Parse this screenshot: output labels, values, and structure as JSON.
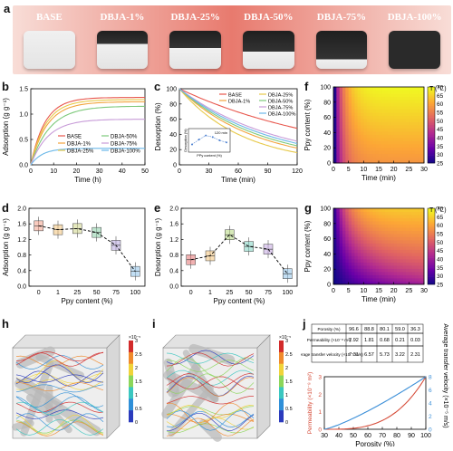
{
  "panel_labels": {
    "a": "a",
    "b": "b",
    "c": "c",
    "d": "d",
    "e": "e",
    "f": "f",
    "g": "g",
    "h": "h",
    "i": "i",
    "j": "j"
  },
  "colors": {
    "banner_start": "#f6d6d0",
    "banner_mid": "#e87a6e",
    "banner_end": "#f6d6d0"
  },
  "samples": [
    "BASE",
    "DBJA-1%",
    "DBJA-25%",
    "DBJA-50%",
    "DBJA-75%",
    "DBJA-100%"
  ],
  "series_colors": [
    "#e8574d",
    "#f2a43c",
    "#e7c94a",
    "#7dc97a",
    "#c79bd8",
    "#6bb8e8"
  ],
  "chart_data": [
    {
      "id": "b",
      "type": "line",
      "xlabel": "Time (h)",
      "ylabel": "Adsorption (g g⁻¹)",
      "xlim": [
        0,
        50
      ],
      "ylim": [
        0,
        1.75
      ],
      "xticks": [
        "0",
        "10",
        "20",
        "30",
        "40",
        "50"
      ],
      "yticks": [
        "0.0",
        "0.5",
        "1.0",
        "1.5"
      ],
      "series": [
        {
          "name": "BASE",
          "plateau": 1.55,
          "rate": 0.16
        },
        {
          "name": "DBJA-1%",
          "plateau": 1.45,
          "rate": 0.14
        },
        {
          "name": "DBJA-25%",
          "plateau": 1.5,
          "rate": 0.15
        },
        {
          "name": "DBJA-50%",
          "plateau": 1.35,
          "rate": 0.12
        },
        {
          "name": "DBJA-75%",
          "plateau": 1.05,
          "rate": 0.13
        },
        {
          "name": "DBJA-100%",
          "plateau": 0.38,
          "rate": 0.2
        }
      ]
    },
    {
      "id": "c",
      "type": "line",
      "xlabel": "Time (min)",
      "ylabel": "Desorption (%)",
      "xlim": [
        0,
        120
      ],
      "ylim": [
        0,
        100
      ],
      "xticks": [
        "0",
        "30",
        "60",
        "90",
        "120"
      ],
      "yticks": [
        "0",
        "20",
        "40",
        "60",
        "80",
        "100"
      ],
      "series": [
        {
          "name": "BASE",
          "end": 48
        },
        {
          "name": "DBJA-1%",
          "end": 22
        },
        {
          "name": "DBJA-25%",
          "end": 16
        },
        {
          "name": "DBJA-50%",
          "end": 25
        },
        {
          "name": "DBJA-75%",
          "end": 31
        },
        {
          "name": "DBJA-100%",
          "end": 28
        }
      ],
      "inset": {
        "annotation": "120 min",
        "xlabel": "PPy content (%)",
        "ylabel": "Desorption (%)",
        "values": [
          50,
          62,
          72,
          68,
          60,
          55
        ]
      }
    },
    {
      "id": "d",
      "type": "box",
      "xlabel": "Ppy content (%)",
      "ylabel": "Adsorption (g g⁻¹)",
      "categories": [
        "0",
        "1",
        "25",
        "50",
        "75",
        "100"
      ],
      "values": [
        1.55,
        1.45,
        1.48,
        1.38,
        1.05,
        0.38
      ],
      "ylim": [
        0,
        2.0
      ],
      "yticks": [
        "0.0",
        "0.4",
        "0.8",
        "1.2",
        "1.6",
        "2.0"
      ]
    },
    {
      "id": "e",
      "type": "box",
      "xlabel": "Ppy content (%)",
      "ylabel": "Desorption (g g⁻¹)",
      "categories": [
        "0",
        "1",
        "25",
        "50",
        "75",
        "100"
      ],
      "values": [
        0.68,
        0.78,
        1.32,
        1.02,
        0.95,
        0.32
      ],
      "ylim": [
        0,
        2.0
      ],
      "yticks": [
        "0.0",
        "0.4",
        "0.8",
        "1.2",
        "1.6",
        "2.0"
      ]
    },
    {
      "id": "f",
      "type": "heatmap",
      "xlabel": "Time (min)",
      "ylabel": "Ppy content (%)",
      "xticks": [
        "0",
        "5",
        "10",
        "15",
        "20",
        "25",
        "30"
      ],
      "yticks": [
        "0",
        "20",
        "40",
        "60",
        "80",
        "100"
      ],
      "colorbar": {
        "title": "T (℃)",
        "ticks": [
          "25",
          "30",
          "35",
          "40",
          "45",
          "50",
          "55",
          "60",
          "65",
          "70"
        ],
        "range": [
          25,
          70
        ]
      }
    },
    {
      "id": "g",
      "type": "heatmap",
      "xlabel": "Time (min)",
      "ylabel": "Ppy content (%)",
      "xticks": [
        "0",
        "5",
        "10",
        "15",
        "20",
        "25",
        "30"
      ],
      "yticks": [
        "0",
        "20",
        "40",
        "60",
        "80",
        "100"
      ],
      "colorbar": {
        "title": "T (℃)",
        "ticks": [
          "25",
          "30",
          "35",
          "40",
          "45",
          "50",
          "55",
          "60",
          "65",
          "70"
        ],
        "range": [
          25,
          70
        ]
      }
    },
    {
      "id": "j",
      "type": "line",
      "xlabel": "Porosity (%)",
      "ylabel_left": "Permeability (×10⁻⁸ m²)",
      "ylabel_right": "Average transfer velocity (×10⁻⁵ m/s)",
      "xticks": [
        "30",
        "40",
        "50",
        "60",
        "70",
        "80",
        "90",
        "100"
      ],
      "yticks_left": [
        "0",
        "1",
        "2",
        "3"
      ],
      "yticks_right": [
        "0",
        "2",
        "4",
        "6",
        "8"
      ],
      "table": {
        "rows": [
          {
            "label": "Porosity (%)",
            "values": [
              "96.6",
              "88.8",
              "80.1",
              "59.0",
              "36.3"
            ]
          },
          {
            "label": "Permeability (×10⁻⁸ m²)",
            "values": [
              "2.92",
              "1.81",
              "0.68",
              "0.21",
              "0.03"
            ]
          },
          {
            "label": "Average transfer velocity (×10⁻⁵ m/s)",
            "values": [
              "7.31",
              "6.57",
              "5.73",
              "3.22",
              "2.31"
            ]
          }
        ]
      }
    }
  ],
  "sim_h": {
    "colorbar_ticks": [
      "3",
      "2.5",
      "2",
      "1.5",
      "1",
      "0.5",
      "0"
    ],
    "colorbar_exp": "×10⁻⁵"
  },
  "sim_i": {
    "colorbar_ticks": [
      "3",
      "2.5",
      "2",
      "1.5",
      "1",
      "0.5",
      "0"
    ],
    "colorbar_exp": "×10⁻⁵"
  }
}
